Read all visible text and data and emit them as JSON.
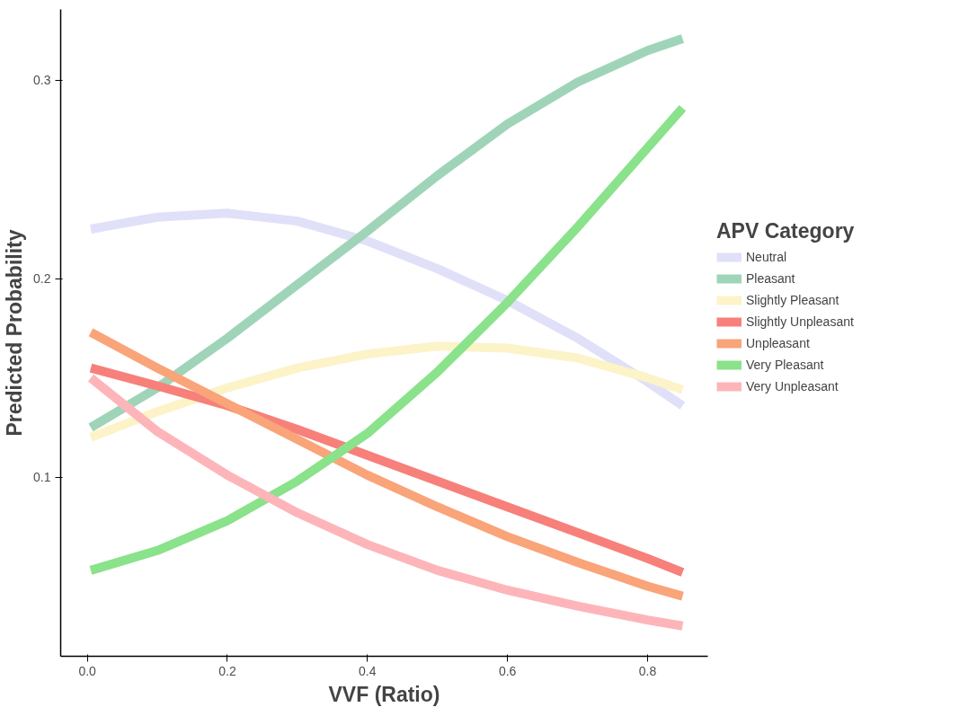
{
  "chart_data": {
    "type": "line",
    "xlabel": "VVF (Ratio)",
    "ylabel": "Predicted Probability",
    "legend_title": "APV Category",
    "x": [
      0.005,
      0.1,
      0.2,
      0.3,
      0.4,
      0.5,
      0.6,
      0.7,
      0.8,
      0.85
    ],
    "series": [
      {
        "name": "Neutral",
        "color": "#e0e0f8",
        "values": [
          0.225,
          0.231,
          0.233,
          0.229,
          0.219,
          0.205,
          0.189,
          0.17,
          0.148,
          0.136
        ]
      },
      {
        "name": "Pleasant",
        "color": "#9fd4b8",
        "values": [
          0.125,
          0.145,
          0.17,
          0.197,
          0.224,
          0.252,
          0.278,
          0.299,
          0.315,
          0.321
        ]
      },
      {
        "name": "Slightly Pleasant",
        "color": "#fcf3c8",
        "values": [
          0.12,
          0.133,
          0.145,
          0.155,
          0.162,
          0.166,
          0.165,
          0.16,
          0.15,
          0.144
        ]
      },
      {
        "name": "Slightly Unpleasant",
        "color": "#f7807a",
        "values": [
          0.155,
          0.146,
          0.136,
          0.124,
          0.111,
          0.098,
          0.085,
          0.072,
          0.059,
          0.052
        ]
      },
      {
        "name": "Unpleasant",
        "color": "#f9a479",
        "values": [
          0.173,
          0.155,
          0.137,
          0.119,
          0.101,
          0.085,
          0.07,
          0.057,
          0.045,
          0.04
        ]
      },
      {
        "name": "Very Pleasant",
        "color": "#8ae28a",
        "values": [
          0.053,
          0.063,
          0.078,
          0.098,
          0.122,
          0.153,
          0.188,
          0.226,
          0.266,
          0.286
        ]
      },
      {
        "name": "Very Unpleasant",
        "color": "#fdb5ba",
        "values": [
          0.15,
          0.123,
          0.101,
          0.082,
          0.066,
          0.053,
          0.043,
          0.035,
          0.028,
          0.025
        ]
      }
    ],
    "xlim": [
      -0.038,
      0.886
    ],
    "ylim": [
      0.0097,
      0.3357
    ],
    "xticks": [
      {
        "value": 0,
        "label": "0.0"
      },
      0.2,
      0.4,
      0.6,
      0.8
    ],
    "yticks": [
      0.1,
      0.2,
      0.3
    ],
    "grid": false,
    "legend": "right",
    "marker": "none",
    "line_style": "solid"
  }
}
